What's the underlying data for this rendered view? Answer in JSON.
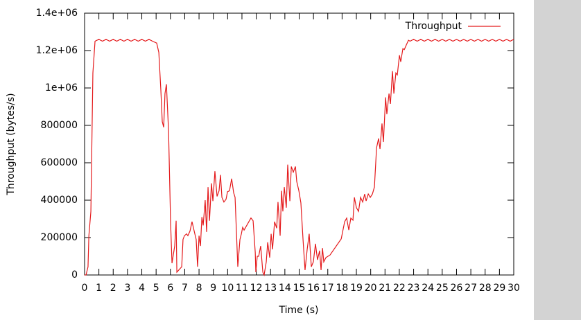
{
  "chart_data": {
    "type": "line",
    "xlabel": "Time (s)",
    "ylabel": "Throughput (bytes/s)",
    "legend": "top-right",
    "x": [
      0,
      0.1,
      0.24,
      0.3,
      0.44,
      0.58,
      0.73,
      1.0,
      1.25,
      1.5,
      1.75,
      2.0,
      2.25,
      2.5,
      2.75,
      3.0,
      3.25,
      3.5,
      3.75,
      4.0,
      4.25,
      4.5,
      4.75,
      5.04,
      5.19,
      5.33,
      5.43,
      5.53,
      5.62,
      5.72,
      5.87,
      6.01,
      6.11,
      6.3,
      6.4,
      6.45,
      6.79,
      6.88,
      6.98,
      7.13,
      7.22,
      7.37,
      7.51,
      7.66,
      7.8,
      7.9,
      8.0,
      8.1,
      8.2,
      8.29,
      8.43,
      8.53,
      8.63,
      8.73,
      8.87,
      8.97,
      9.11,
      9.26,
      9.4,
      9.5,
      9.6,
      9.74,
      9.89,
      9.99,
      10.13,
      10.28,
      10.42,
      10.52,
      10.71,
      10.86,
      10.96,
      11.05,
      11.15,
      11.63,
      11.78,
      11.93,
      11.97,
      12.07,
      12.17,
      12.31,
      12.46,
      12.55,
      12.7,
      12.8,
      12.94,
      13.04,
      13.14,
      13.28,
      13.43,
      13.52,
      13.67,
      13.77,
      13.86,
      13.96,
      14.1,
      14.2,
      14.35,
      14.45,
      14.59,
      14.74,
      14.83,
      14.98,
      15.12,
      15.27,
      15.41,
      15.56,
      15.7,
      15.85,
      15.99,
      16.14,
      16.28,
      16.43,
      16.53,
      16.63,
      16.72,
      16.87,
      17.16,
      17.94,
      18.18,
      18.32,
      18.47,
      18.61,
      18.76,
      18.86,
      19.0,
      19.15,
      19.29,
      19.44,
      19.58,
      19.68,
      19.83,
      19.97,
      20.12,
      20.26,
      20.41,
      20.55,
      20.65,
      20.79,
      20.89,
      21.04,
      21.13,
      21.28,
      21.38,
      21.52,
      21.62,
      21.76,
      21.86,
      22.01,
      22.1,
      22.25,
      22.35,
      22.49,
      22.64,
      22.75,
      23.0,
      23.25,
      23.5,
      23.75,
      24.0,
      24.25,
      24.5,
      24.75,
      25.0,
      25.25,
      25.5,
      25.75,
      26.0,
      26.25,
      26.5,
      26.75,
      27.0,
      27.25,
      27.5,
      27.75,
      28.0,
      28.25,
      28.5,
      28.75,
      29.0,
      29.25,
      29.5,
      29.75,
      30.0
    ],
    "series": [
      {
        "name": "Throughput",
        "color": "#e41a1c",
        "values": [
          0,
          0,
          44000,
          210000,
          340000,
          1080000,
          1250000,
          1260000,
          1250000,
          1260000,
          1250000,
          1260000,
          1250000,
          1260000,
          1250000,
          1260000,
          1250000,
          1260000,
          1250000,
          1260000,
          1250000,
          1260000,
          1250000,
          1240000,
          1190000,
          990000,
          820000,
          790000,
          970000,
          1020000,
          770000,
          285000,
          63000,
          155000,
          290000,
          15000,
          44000,
          190000,
          210000,
          220000,
          210000,
          235000,
          285000,
          235000,
          190000,
          44000,
          210000,
          155000,
          310000,
          265000,
          400000,
          230000,
          470000,
          290000,
          490000,
          395000,
          555000,
          420000,
          450000,
          535000,
          415000,
          390000,
          405000,
          445000,
          450000,
          515000,
          440000,
          415000,
          44000,
          190000,
          220000,
          255000,
          240000,
          305000,
          290000,
          120000,
          15000,
          100000,
          100000,
          155000,
          15000,
          0,
          70000,
          175000,
          93000,
          220000,
          137000,
          285000,
          250000,
          390000,
          210000,
          450000,
          340000,
          470000,
          360000,
          590000,
          395000,
          580000,
          550000,
          580000,
          500000,
          450000,
          385000,
          190000,
          26000,
          137000,
          220000,
          44000,
          70000,
          167000,
          81000,
          130000,
          26000,
          144000,
          70000,
          93000,
          107000,
          193000,
          285000,
          304000,
          240000,
          304000,
          293000,
          415000,
          360000,
          340000,
          415000,
          390000,
          433000,
          396000,
          433000,
          415000,
          433000,
          470000,
          680000,
          730000,
          674000,
          810000,
          711000,
          950000,
          860000,
          970000,
          915000,
          1090000,
          970000,
          1080000,
          1070000,
          1175000,
          1140000,
          1210000,
          1205000,
          1230000,
          1255000,
          1250000,
          1260000,
          1250000,
          1260000,
          1250000,
          1260000,
          1250000,
          1260000,
          1250000,
          1260000,
          1250000,
          1260000,
          1250000,
          1260000,
          1250000,
          1260000,
          1250000,
          1260000,
          1250000,
          1260000,
          1250000,
          1260000,
          1250000,
          1260000,
          1250000,
          1260000,
          1250000,
          1260000,
          1250000,
          1260000
        ]
      }
    ],
    "xlim": [
      0,
      30
    ],
    "ylim": [
      0,
      1400000
    ],
    "xticks": [
      0,
      1,
      2,
      3,
      4,
      5,
      6,
      7,
      8,
      9,
      10,
      11,
      12,
      13,
      14,
      15,
      16,
      17,
      18,
      19,
      20,
      21,
      22,
      23,
      24,
      25,
      26,
      27,
      28,
      29,
      30
    ],
    "yticks": [
      0,
      200000,
      400000,
      600000,
      800000,
      {
        "value": 1000000,
        "label": "1e+06"
      },
      {
        "value": 1200000,
        "label": "1.2e+06"
      },
      {
        "value": 1400000,
        "label": "1.4e+06"
      }
    ]
  }
}
